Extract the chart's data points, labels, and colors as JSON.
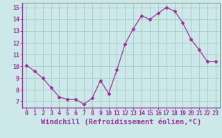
{
  "x": [
    0,
    1,
    2,
    3,
    4,
    5,
    6,
    7,
    8,
    9,
    10,
    11,
    12,
    13,
    14,
    15,
    16,
    17,
    18,
    19,
    20,
    21,
    22,
    23
  ],
  "y": [
    10.1,
    9.6,
    9.0,
    8.2,
    7.4,
    7.2,
    7.2,
    6.8,
    7.3,
    8.8,
    7.7,
    9.7,
    11.9,
    13.2,
    14.3,
    14.0,
    14.5,
    15.0,
    14.7,
    13.7,
    12.3,
    11.4,
    10.4,
    10.4
  ],
  "line_color": "#993399",
  "marker": "D",
  "marker_size": 2.5,
  "bg_color": "#cce8e8",
  "grid_color": "#aacccc",
  "xlabel": "Windchill (Refroidissement éolien,°C)",
  "xlabel_fontsize": 7.5,
  "ylabel_ticks": [
    7,
    8,
    9,
    10,
    11,
    12,
    13,
    14,
    15
  ],
  "xlim": [
    -0.5,
    23.5
  ],
  "ylim": [
    6.5,
    15.4
  ],
  "xtick_labels": [
    "0",
    "1",
    "2",
    "3",
    "4",
    "5",
    "6",
    "7",
    "8",
    "9",
    "10",
    "11",
    "12",
    "13",
    "14",
    "15",
    "16",
    "17",
    "18",
    "19",
    "20",
    "21",
    "22",
    "23"
  ],
  "tick_fontsize": 6.0,
  "axis_color": "#993399",
  "spine_color": "#888888"
}
